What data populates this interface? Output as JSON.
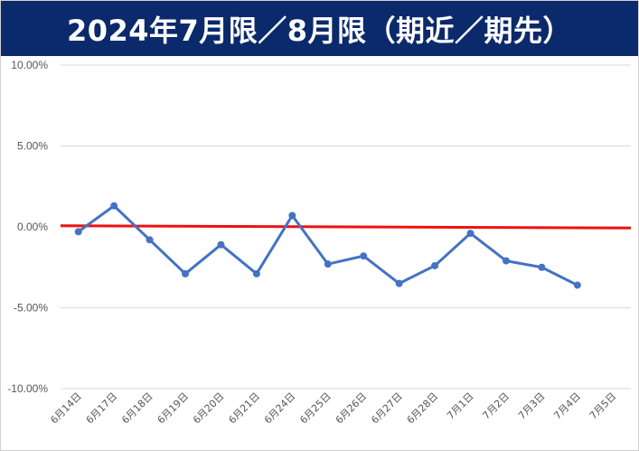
{
  "header": {
    "title": "2024年7月限／8月限（期近／期先）"
  },
  "chart_data": {
    "type": "line",
    "title": "2024年7月限／8月限（期近／期先）",
    "xlabel": "",
    "ylabel": "",
    "categories": [
      "6月14日",
      "6月17日",
      "6月18日",
      "6月19日",
      "6月20日",
      "6月21日",
      "6月24日",
      "6月25日",
      "6月26日",
      "6月27日",
      "6月28日",
      "7月1日",
      "7月2日",
      "7月3日",
      "7月4日",
      "7月5日"
    ],
    "y_ticks": [
      "10.00%",
      "5.00%",
      "0.00%",
      "-5.00%",
      "-10.00%"
    ],
    "ylim": [
      -10,
      10
    ],
    "grid": true,
    "series": [
      {
        "values": [
          -0.3,
          1.3,
          -0.8,
          -2.9,
          -1.1,
          -2.9,
          0.7,
          -2.3,
          -1.8,
          -3.5,
          -2.4,
          -0.4,
          -2.1,
          -2.5,
          -3.6,
          null
        ],
        "color": "#4472c4"
      }
    ],
    "reference_line": {
      "value": 0.0,
      "color": "#ee1111"
    }
  }
}
